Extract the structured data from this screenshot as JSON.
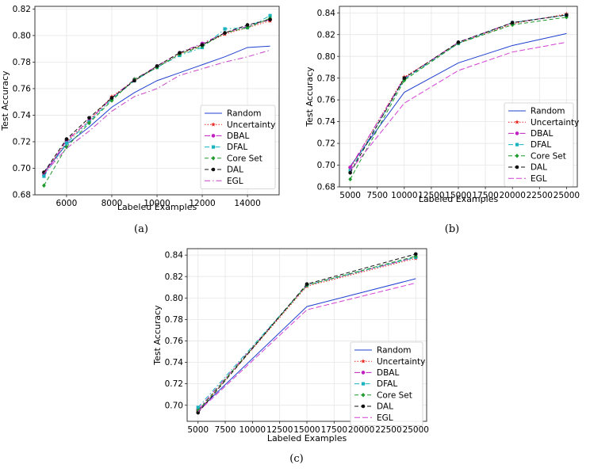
{
  "figure": {
    "charts": [
      {
        "caption": "(a)"
      },
      {
        "caption": "(b)"
      },
      {
        "caption": "(c)"
      }
    ]
  },
  "chart_data": [
    {
      "type": "line",
      "xlabel": "Labeled Examples",
      "ylabel": "Test Accuracy",
      "xlim": [
        4600,
        15400
      ],
      "ylim": [
        0.68,
        0.822
      ],
      "xticks": [
        6000,
        8000,
        10000,
        12000,
        14000
      ],
      "yticks": [
        0.68,
        0.7,
        0.72,
        0.74,
        0.76,
        0.78,
        0.8,
        0.82
      ],
      "ytick_decimals": 2,
      "grid": true,
      "legend": "bottom-right",
      "x": [
        5000,
        6000,
        7000,
        8000,
        9000,
        10000,
        11000,
        12000,
        13000,
        14000,
        15000
      ],
      "series": [
        {
          "name": "Random",
          "color": "#1f3fd0",
          "dash": "",
          "marker": "none",
          "values": [
            0.697,
            0.718,
            0.731,
            0.746,
            0.757,
            0.766,
            0.772,
            0.778,
            0.784,
            0.791,
            0.792
          ]
        },
        {
          "name": "Uncertainty",
          "color": "#e8281e",
          "dash": "1.5,2",
          "marker": "star",
          "values": [
            0.696,
            0.72,
            0.736,
            0.754,
            0.766,
            0.776,
            0.786,
            0.793,
            0.801,
            0.806,
            0.811
          ]
        },
        {
          "name": "DBAL",
          "color": "#c21fc2",
          "dash": "7,3,1.5,3",
          "marker": "circle",
          "values": [
            0.695,
            0.721,
            0.736,
            0.753,
            0.767,
            0.777,
            0.787,
            0.794,
            0.802,
            0.807,
            0.812
          ]
        },
        {
          "name": "DFAL",
          "color": "#19b3bf",
          "dash": "6,3,1.5,3",
          "marker": "square",
          "values": [
            0.694,
            0.719,
            0.735,
            0.752,
            0.766,
            0.776,
            0.785,
            0.791,
            0.805,
            0.806,
            0.815
          ]
        },
        {
          "name": "Core Set",
          "color": "#1e9a2c",
          "dash": "5,3",
          "marker": "diamond",
          "values": [
            0.687,
            0.716,
            0.734,
            0.751,
            0.767,
            0.776,
            0.786,
            0.792,
            0.802,
            0.806,
            0.813
          ]
        },
        {
          "name": "DAL",
          "color": "#111111",
          "dash": "5,3",
          "marker": "circle",
          "values": [
            0.697,
            0.722,
            0.738,
            0.753,
            0.766,
            0.777,
            0.787,
            0.793,
            0.802,
            0.808,
            0.812
          ]
        },
        {
          "name": "EGL",
          "color": "#c43fc4",
          "dash": "7,3,1.5,3",
          "marker": "none",
          "values": [
            0.696,
            0.715,
            0.728,
            0.743,
            0.754,
            0.76,
            0.77,
            0.775,
            0.78,
            0.784,
            0.789
          ]
        }
      ]
    },
    {
      "type": "line",
      "xlabel": "Labeled Examples",
      "ylabel": "Test Accuracy",
      "xlim": [
        4000,
        26000
      ],
      "ylim": [
        0.68,
        0.846
      ],
      "xticks": [
        5000,
        7500,
        10000,
        12500,
        15000,
        17500,
        20000,
        22500,
        25000
      ],
      "yticks": [
        0.68,
        0.7,
        0.72,
        0.74,
        0.76,
        0.78,
        0.8,
        0.82,
        0.84
      ],
      "ytick_decimals": 2,
      "grid": true,
      "legend": "bottom-right",
      "x": [
        5000,
        10000,
        15000,
        20000,
        25000
      ],
      "series": [
        {
          "name": "Random",
          "color": "#1f3fd0",
          "dash": "",
          "marker": "none",
          "values": [
            0.699,
            0.767,
            0.794,
            0.81,
            0.821
          ]
        },
        {
          "name": "Uncertainty",
          "color": "#e8281e",
          "dash": "1.5,2",
          "marker": "star",
          "values": [
            0.697,
            0.781,
            0.812,
            0.83,
            0.839
          ]
        },
        {
          "name": "DBAL",
          "color": "#c21fc2",
          "dash": "7,3,1.5,3",
          "marker": "circle",
          "values": [
            0.698,
            0.78,
            0.813,
            0.831,
            0.838
          ]
        },
        {
          "name": "DFAL",
          "color": "#19b3bf",
          "dash": "6,3,1.5,3",
          "marker": "square",
          "values": [
            0.695,
            0.779,
            0.812,
            0.831,
            0.838
          ]
        },
        {
          "name": "Core Set",
          "color": "#1e9a2c",
          "dash": "5,3",
          "marker": "diamond",
          "values": [
            0.687,
            0.778,
            0.812,
            0.829,
            0.836
          ]
        },
        {
          "name": "DAL",
          "color": "#111111",
          "dash": "5,3",
          "marker": "circle",
          "values": [
            0.693,
            0.78,
            0.813,
            0.831,
            0.838
          ]
        },
        {
          "name": "EGL",
          "color": "#d23fd2",
          "dash": "7,3",
          "marker": "none",
          "values": [
            0.695,
            0.757,
            0.787,
            0.804,
            0.813
          ]
        }
      ]
    },
    {
      "type": "line",
      "xlabel": "Labeled Examples",
      "ylabel": "Test Accuracy",
      "xlim": [
        4000,
        26000
      ],
      "ylim": [
        0.685,
        0.846
      ],
      "xticks": [
        5000,
        7500,
        10000,
        12500,
        15000,
        17500,
        20000,
        22500,
        25000
      ],
      "yticks": [
        0.7,
        0.72,
        0.74,
        0.76,
        0.78,
        0.8,
        0.82,
        0.84
      ],
      "ytick_decimals": 2,
      "grid": true,
      "legend": "bottom-right",
      "x": [
        5000,
        15000,
        25000
      ],
      "series": [
        {
          "name": "Random",
          "color": "#1f3fd0",
          "dash": "",
          "marker": "none",
          "values": [
            0.695,
            0.792,
            0.818
          ]
        },
        {
          "name": "Uncertainty",
          "color": "#e8281e",
          "dash": "1.5,2",
          "marker": "star",
          "values": [
            0.694,
            0.811,
            0.837
          ]
        },
        {
          "name": "DBAL",
          "color": "#c21fc2",
          "dash": "7,3,1.5,3",
          "marker": "circle",
          "values": [
            0.696,
            0.812,
            0.838
          ]
        },
        {
          "name": "DFAL",
          "color": "#19b3bf",
          "dash": "6,3,1.5,3",
          "marker": "square",
          "values": [
            0.698,
            0.812,
            0.838
          ]
        },
        {
          "name": "Core Set",
          "color": "#1e9a2c",
          "dash": "5,3",
          "marker": "diamond",
          "values": [
            0.695,
            0.812,
            0.839
          ]
        },
        {
          "name": "DAL",
          "color": "#111111",
          "dash": "5,3",
          "marker": "circle",
          "values": [
            0.693,
            0.813,
            0.841
          ]
        },
        {
          "name": "EGL",
          "color": "#d23fd2",
          "dash": "7,3",
          "marker": "none",
          "values": [
            0.694,
            0.789,
            0.814
          ]
        }
      ]
    }
  ]
}
